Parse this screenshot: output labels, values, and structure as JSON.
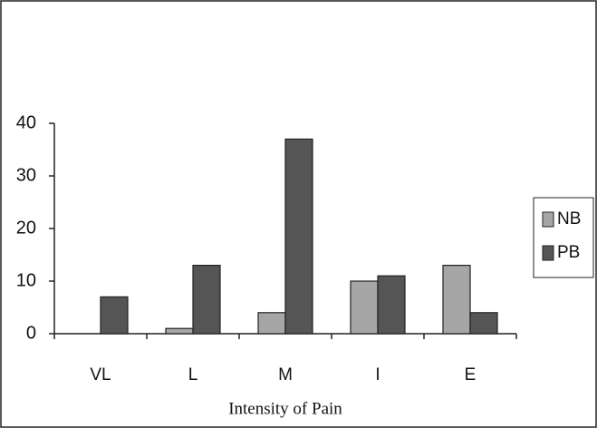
{
  "chart_data": {
    "type": "bar",
    "x_label": "Intensity of Pain",
    "categories": [
      "VL",
      "L",
      "M",
      "I",
      "E"
    ],
    "series": [
      {
        "name": "NB",
        "color": "#a6a6a6",
        "values": [
          0,
          1,
          4,
          10,
          13
        ]
      },
      {
        "name": "PB",
        "color": "#555555",
        "values": [
          7,
          13,
          37,
          11,
          4
        ]
      }
    ],
    "ylim": [
      0,
      40
    ],
    "yticks": [
      0,
      10,
      20,
      30,
      40
    ],
    "grid": false,
    "legend": "right"
  }
}
